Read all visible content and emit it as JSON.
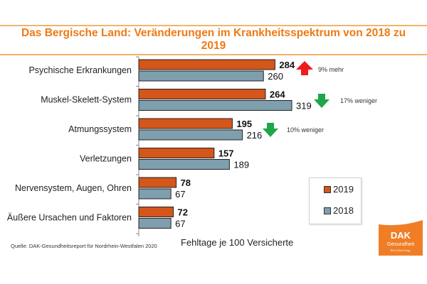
{
  "chart_data": {
    "type": "bar",
    "orientation": "horizontal",
    "title": "Das Bergische Land: Veränderungen im Krankheitsspektrum von 2018 zu 2019",
    "title_lines": [
      "Das Bergische Land: Veränderungen im Krankheitsspektrum von 2018 zu",
      "2019"
    ],
    "xlabel": "Fehltage je 100 Versicherte",
    "ylabel": "",
    "xlim": [
      0,
      330
    ],
    "grid": false,
    "legend_position": "bottom-right",
    "categories": [
      "Psychische Erkrankungen",
      "Muskel-Skelett-System",
      "Atmungssystem",
      "Verletzungen",
      "Nervensystem, Augen, Ohren",
      "Äußere Ursachen und Faktoren"
    ],
    "series": [
      {
        "name": "2019",
        "color": "#d4561a",
        "values": [
          284,
          264,
          195,
          157,
          78,
          72
        ]
      },
      {
        "name": "2018",
        "color": "#7f9fae",
        "values": [
          260,
          319,
          216,
          189,
          67,
          67
        ]
      }
    ],
    "annotations": [
      {
        "category": "Psychische Erkrankungen",
        "direction": "up",
        "color": "#ee1c1c",
        "text": "9% mehr"
      },
      {
        "category": "Muskel-Skelett-System",
        "direction": "down",
        "color": "#1fa64a",
        "text": "17% weniger"
      },
      {
        "category": "Atmungssystem",
        "direction": "down",
        "color": "#1fa64a",
        "text": "10% weniger"
      }
    ]
  },
  "source": "Quelle: DAK-Gesundheitsreport für Nordrhein-Westfalen 2020",
  "legend": [
    {
      "label": "2019",
      "color": "#d4561a"
    },
    {
      "label": "2018",
      "color": "#7f9fae"
    }
  ],
  "logo": {
    "brand": "DAK",
    "line2": "Gesundheit",
    "tagline": "Ein Leben lang.",
    "color": "#f07e26"
  }
}
